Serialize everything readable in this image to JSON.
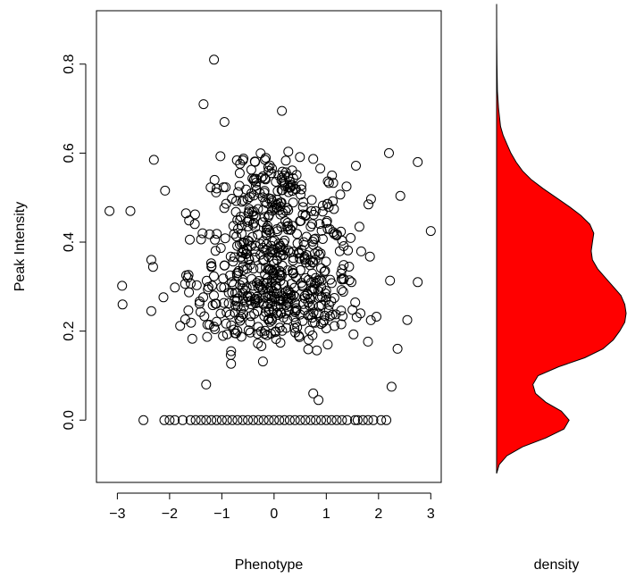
{
  "chart_data": [
    {
      "type": "scatter",
      "xlabel": "Phenotype",
      "ylabel": "Peak Intensity",
      "xlim": [
        -3.4,
        3.2
      ],
      "ylim": [
        -0.14,
        0.92
      ],
      "x_ticks": [
        -3,
        -2,
        -1,
        0,
        1,
        2,
        3
      ],
      "x_tick_labels": [
        "−3",
        "−2",
        "−1",
        "0",
        "1",
        "2",
        "3"
      ],
      "y_ticks": [
        0.0,
        0.2,
        0.4,
        0.6,
        0.8
      ],
      "y_tick_labels": [
        "0.0",
        "0.2",
        "0.4",
        "0.6",
        "0.8"
      ],
      "grid": false,
      "marker": "open-circle",
      "point_color": "#000000",
      "outliers": [
        {
          "x": -3.15,
          "y": 0.47
        },
        {
          "x": -2.75,
          "y": 0.47
        },
        {
          "x": -2.9,
          "y": 0.26
        },
        {
          "x": -2.3,
          "y": 0.585
        },
        {
          "x": -2.35,
          "y": 0.36
        },
        {
          "x": -2.35,
          "y": 0.245
        },
        {
          "x": -1.15,
          "y": 0.81
        },
        {
          "x": -1.35,
          "y": 0.71
        },
        {
          "x": -0.95,
          "y": 0.67
        },
        {
          "x": 0.15,
          "y": 0.695
        },
        {
          "x": 2.75,
          "y": 0.58
        },
        {
          "x": 3.0,
          "y": 0.425
        },
        {
          "x": 2.55,
          "y": 0.225
        },
        {
          "x": 2.75,
          "y": 0.31
        },
        {
          "x": 2.2,
          "y": 0.6
        },
        {
          "x": 2.25,
          "y": 0.075
        },
        {
          "x": 0.75,
          "y": 0.06
        },
        {
          "x": 0.85,
          "y": 0.045
        },
        {
          "x": -1.3,
          "y": 0.08
        }
      ],
      "zero_row_x": [
        -2.5,
        -2.1,
        -2.0,
        -1.9,
        -1.75,
        -1.6,
        -1.5,
        -1.4,
        -1.3,
        -1.2,
        -1.1,
        -1.0,
        -0.9,
        -0.8,
        -0.7,
        -0.6,
        -0.5,
        -0.4,
        -0.3,
        -0.2,
        -0.1,
        0.0,
        0.1,
        0.2,
        0.3,
        0.4,
        0.5,
        0.6,
        0.7,
        0.8,
        0.9,
        1.0,
        1.1,
        1.2,
        1.3,
        1.4,
        1.55,
        1.6,
        1.7,
        1.8,
        1.9,
        2.05,
        2.15
      ]
    },
    {
      "type": "area",
      "xlabel": "density",
      "fill_color": "#ff0000",
      "line_color": "#000000",
      "y_range": [
        -0.12,
        0.935
      ],
      "curve": [
        {
          "y": -0.12,
          "d": 0.0
        },
        {
          "y": -0.1,
          "d": 0.02
        },
        {
          "y": -0.08,
          "d": 0.08
        },
        {
          "y": -0.06,
          "d": 0.2
        },
        {
          "y": -0.04,
          "d": 0.38
        },
        {
          "y": -0.02,
          "d": 0.52
        },
        {
          "y": 0.0,
          "d": 0.56
        },
        {
          "y": 0.02,
          "d": 0.5
        },
        {
          "y": 0.04,
          "d": 0.38
        },
        {
          "y": 0.06,
          "d": 0.3
        },
        {
          "y": 0.08,
          "d": 0.28
        },
        {
          "y": 0.1,
          "d": 0.32
        },
        {
          "y": 0.12,
          "d": 0.48
        },
        {
          "y": 0.14,
          "d": 0.68
        },
        {
          "y": 0.16,
          "d": 0.82
        },
        {
          "y": 0.18,
          "d": 0.9
        },
        {
          "y": 0.2,
          "d": 0.95
        },
        {
          "y": 0.22,
          "d": 0.99
        },
        {
          "y": 0.24,
          "d": 1.0
        },
        {
          "y": 0.26,
          "d": 0.99
        },
        {
          "y": 0.28,
          "d": 0.96
        },
        {
          "y": 0.3,
          "d": 0.9
        },
        {
          "y": 0.32,
          "d": 0.84
        },
        {
          "y": 0.34,
          "d": 0.78
        },
        {
          "y": 0.36,
          "d": 0.74
        },
        {
          "y": 0.38,
          "d": 0.73
        },
        {
          "y": 0.4,
          "d": 0.74
        },
        {
          "y": 0.42,
          "d": 0.75
        },
        {
          "y": 0.44,
          "d": 0.72
        },
        {
          "y": 0.46,
          "d": 0.65
        },
        {
          "y": 0.48,
          "d": 0.56
        },
        {
          "y": 0.5,
          "d": 0.46
        },
        {
          "y": 0.52,
          "d": 0.36
        },
        {
          "y": 0.54,
          "d": 0.27
        },
        {
          "y": 0.56,
          "d": 0.2
        },
        {
          "y": 0.58,
          "d": 0.15
        },
        {
          "y": 0.6,
          "d": 0.11
        },
        {
          "y": 0.62,
          "d": 0.08
        },
        {
          "y": 0.64,
          "d": 0.05
        },
        {
          "y": 0.66,
          "d": 0.03
        },
        {
          "y": 0.7,
          "d": 0.015
        },
        {
          "y": 0.74,
          "d": 0.006
        },
        {
          "y": 0.8,
          "d": 0.003
        },
        {
          "y": 0.86,
          "d": 0.001
        },
        {
          "y": 0.935,
          "d": 0.0
        }
      ]
    }
  ]
}
